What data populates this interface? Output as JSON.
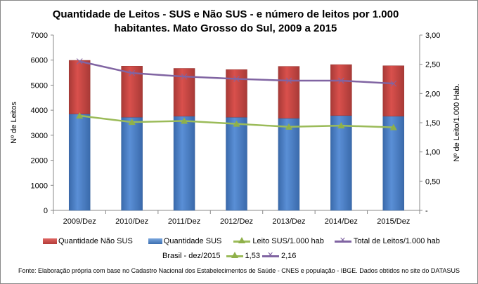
{
  "chart_data": {
    "type": "bar",
    "title": "Quantidade de Leitos - SUS e Não SUS - e número de leitos por 1.000 habitantes. Mato Grosso do Sul, 2009 a 2015",
    "categories": [
      "2009/Dez",
      "2010/Dez",
      "2011/Dez",
      "2012/Dez",
      "2013/Dez",
      "2014/Dez",
      "2015/Dez"
    ],
    "ylabel": "Nº de Leitos",
    "y2label": "Nº de Leito/1.000 Hab.",
    "ylim": [
      0,
      7000
    ],
    "y2lim": [
      0,
      3
    ],
    "yticks": [
      "0",
      "1000",
      "2000",
      "3000",
      "4000",
      "5000",
      "6000",
      "7000"
    ],
    "y2ticks": [
      "-",
      "0,50",
      "1,00",
      "1,50",
      "2,00",
      "2,50",
      "3,00"
    ],
    "grid": false,
    "legend_position": "bottom",
    "series": [
      {
        "name": "Quantidade Não SUS",
        "type": "stacked-bar",
        "axis": "left",
        "color": "#c0504d",
        "values": [
          2140,
          2040,
          1910,
          1900,
          2070,
          2035,
          2015
        ]
      },
      {
        "name": "Quantidade SUS",
        "type": "stacked-bar",
        "axis": "left",
        "color": "#4f81bd",
        "values": [
          3850,
          3720,
          3760,
          3720,
          3680,
          3785,
          3760
        ]
      },
      {
        "name": "Leito SUS/1.000 hab",
        "type": "line",
        "axis": "right",
        "marker": "triangle",
        "color": "#9bbb59",
        "values": [
          1.62,
          1.51,
          1.53,
          1.48,
          1.43,
          1.45,
          1.42
        ]
      },
      {
        "name": "Total de Leitos/1.000 hab",
        "type": "line",
        "axis": "right",
        "marker": "x",
        "color": "#8064a2",
        "values": [
          2.55,
          2.35,
          2.29,
          2.25,
          2.22,
          2.22,
          2.17
        ]
      }
    ],
    "brasil_reference": {
      "label": "Brasil -  dez/2015",
      "leito_sus": "1,53",
      "total_leitos": "2,16"
    },
    "source": "Fonte: Elaboração própria com base no  Cadastro Nacional dos Estabelecimentos de Saúde - CNES e população - IBGE. Dados obtidos no site do DATASUS"
  }
}
